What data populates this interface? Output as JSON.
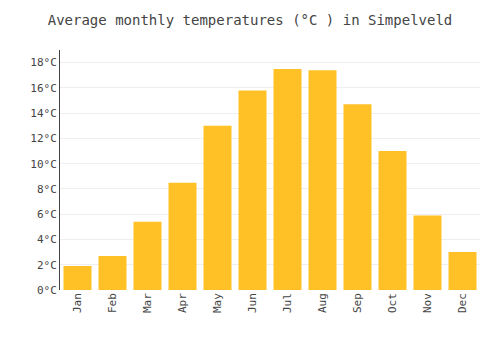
{
  "chart_data": {
    "type": "bar",
    "title": "Average monthly temperatures (°C ) in Simpelveld",
    "categories": [
      "Jan",
      "Feb",
      "Mar",
      "Apr",
      "May",
      "Jun",
      "Jul",
      "Aug",
      "Sep",
      "Oct",
      "Nov",
      "Dec"
    ],
    "values": [
      1.9,
      2.7,
      5.4,
      8.5,
      13.0,
      15.8,
      17.5,
      17.4,
      14.7,
      11.0,
      5.9,
      3.0
    ],
    "color": "#FFC125",
    "ylim": [
      0,
      19
    ],
    "yticks": [
      {
        "value": 0,
        "label": "0°C"
      },
      {
        "value": 2,
        "label": "2°C"
      },
      {
        "value": 4,
        "label": "4°C"
      },
      {
        "value": 6,
        "label": "6°C"
      },
      {
        "value": 8,
        "label": "8°C"
      },
      {
        "value": 10,
        "label": "10°C"
      },
      {
        "value": 12,
        "label": "12°C"
      },
      {
        "value": 14,
        "label": "14°C"
      },
      {
        "value": 16,
        "label": "16°C"
      },
      {
        "value": 18,
        "label": "18°C"
      }
    ],
    "grid": true
  }
}
